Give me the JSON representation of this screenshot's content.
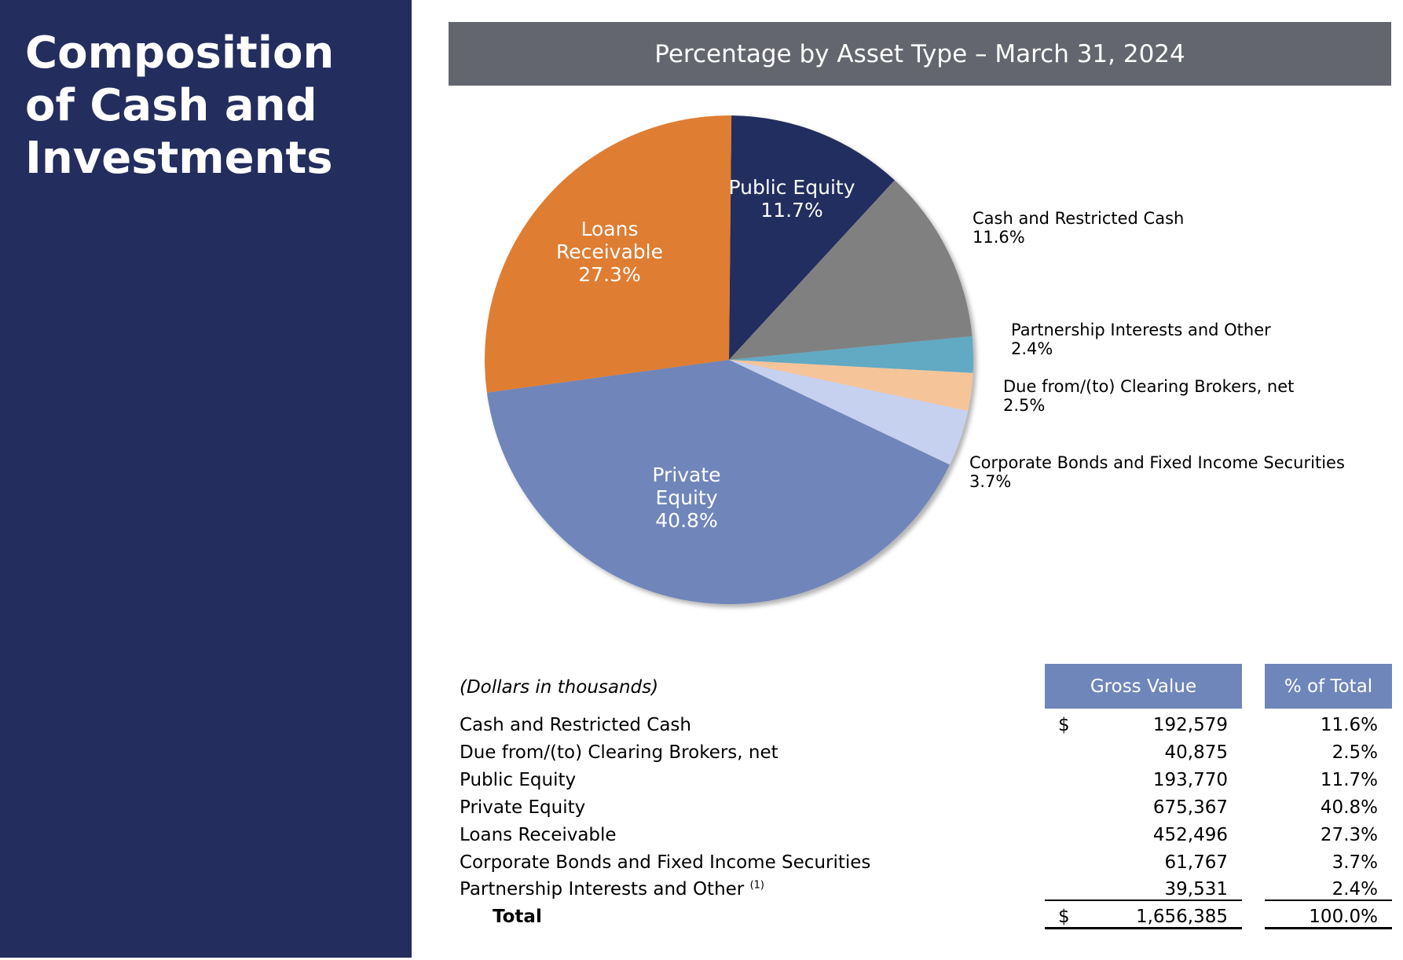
{
  "title": "Composition of Cash and Investments",
  "chart_data": {
    "type": "pie",
    "title": "Percentage by Asset Type – March 31, 2024",
    "categories": [
      "Public Equity",
      "Cash and Restricted Cash",
      "Partnership Interests and Other",
      "Due from/(to) Clearing Brokers, net",
      "Corporate Bonds and Fixed Income Securities",
      "Private Equity",
      "Loans Receivable"
    ],
    "values": [
      11.7,
      11.6,
      2.4,
      2.5,
      3.7,
      40.8,
      27.3
    ],
    "value_labels": [
      "11.7%",
      "11.6%",
      "2.4%",
      "2.5%",
      "3.7%",
      "40.8%",
      "27.3%"
    ],
    "colors": [
      "#232d5e",
      "#808080",
      "#62a9c4",
      "#f5c499",
      "#c5d1ee",
      "#6f86ba",
      "#df7d31"
    ]
  },
  "table": {
    "note": "(Dollars in thousands)",
    "headers": [
      "Gross Value",
      "% of Total"
    ],
    "currency": "$",
    "rows": [
      {
        "label": "Cash and Restricted Cash",
        "value": "192,579",
        "percent": "11.6%"
      },
      {
        "label": "Due from/(to) Clearing Brokers, net",
        "value": "40,875",
        "percent": "2.5%"
      },
      {
        "label": "Public Equity",
        "value": "193,770",
        "percent": "11.7%"
      },
      {
        "label": "Private Equity",
        "value": "675,367",
        "percent": "40.8%"
      },
      {
        "label": "Loans Receivable",
        "value": "452,496",
        "percent": "27.3%"
      },
      {
        "label": "Corporate Bonds and Fixed Income Securities",
        "value": "61,767",
        "percent": "3.7%"
      },
      {
        "label": "Partnership Interests and Other",
        "footnote": "(1)",
        "value": "39,531",
        "percent": "2.4%"
      }
    ],
    "total": {
      "label": "Total",
      "value": "1,656,385",
      "percent": "100.0%"
    }
  }
}
